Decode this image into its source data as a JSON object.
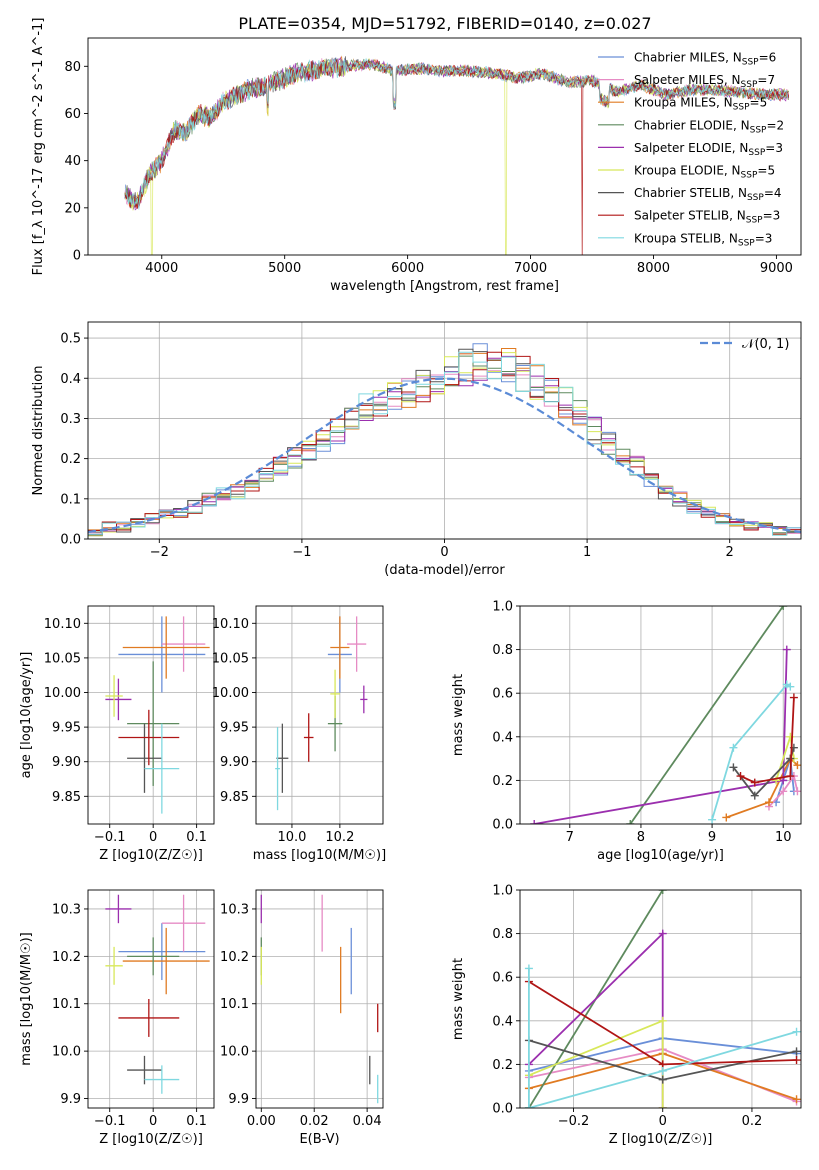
{
  "figure": {
    "title": "PLATE=0354, MJD=51792, FIBERID=0140, z=0.027"
  },
  "models": [
    {
      "name": "Chabrier MILES",
      "nssp": "6",
      "color": "#6a8fd8"
    },
    {
      "name": "Salpeter MILES",
      "nssp": "7",
      "color": "#e68bc4"
    },
    {
      "name": "Kroupa MILES",
      "nssp": "5",
      "color": "#e07b22"
    },
    {
      "name": "Chabrier ELODIE",
      "nssp": "2",
      "color": "#5e8a5e"
    },
    {
      "name": "Salpeter ELODIE",
      "nssp": "3",
      "color": "#9b2fae"
    },
    {
      "name": "Kroupa ELODIE",
      "nssp": "5",
      "color": "#d8e85a"
    },
    {
      "name": "Chabrier STELIB",
      "nssp": "4",
      "color": "#555555"
    },
    {
      "name": "Salpeter STELIB",
      "nssp": "3",
      "color": "#b01515"
    },
    {
      "name": "Kroupa STELIB",
      "nssp": "3",
      "color": "#7fd8e0"
    }
  ],
  "chart_data": [
    {
      "id": "spectrum",
      "type": "line",
      "xlabel": "wavelength [Angstrom, rest frame]",
      "ylabel": "Flux [f_λ 10^-17 erg cm^-2 s^-1 A^-1]",
      "xlim": [
        3400,
        9200
      ],
      "ylim": [
        0,
        92
      ],
      "xticks": [
        4000,
        5000,
        6000,
        7000,
        8000,
        9000
      ],
      "yticks": [
        0,
        20,
        40,
        60,
        80
      ],
      "legend": "top-right",
      "x": [
        3700,
        3800,
        3900,
        4000,
        4100,
        4200,
        4300,
        4400,
        4500,
        4700,
        4900,
        5100,
        5300,
        5500,
        5700,
        5900,
        6100,
        6300,
        6500,
        6700,
        6900,
        7100,
        7300,
        7500,
        7700,
        7900,
        8100,
        8300,
        8500,
        8700,
        8900,
        9100
      ],
      "y": [
        26,
        22,
        34,
        40,
        53,
        52,
        60,
        58,
        65,
        70,
        73,
        77,
        79,
        80,
        81,
        78,
        79,
        78,
        78,
        77,
        75,
        77,
        73,
        74,
        69,
        72,
        68,
        70,
        70,
        69,
        68,
        68
      ],
      "dropouts": [
        {
          "model": "Kroupa ELODIE",
          "x": 3920
        },
        {
          "model": "Kroupa ELODIE",
          "x": 6800
        },
        {
          "model": "Salpeter STELIB",
          "x": 7420
        }
      ]
    },
    {
      "id": "residuals",
      "type": "histogram",
      "xlabel": "(data-model)/error",
      "ylabel": "Normed distribution",
      "xlim": [
        -2.5,
        2.5
      ],
      "ylim": [
        0,
        0.54
      ],
      "xticks": [
        -2,
        -1,
        0,
        1,
        2
      ],
      "yticks": [
        0.0,
        0.1,
        0.2,
        0.3,
        0.4,
        0.5
      ],
      "grid": true,
      "bin_start": -2.5,
      "bin_width": 0.1,
      "reference": {
        "label": "𝒩(0, 1)",
        "mean": 0,
        "sigma": 1,
        "color": "#5b8bd6"
      },
      "values": [
        0.02,
        0.03,
        0.03,
        0.04,
        0.05,
        0.06,
        0.07,
        0.08,
        0.1,
        0.11,
        0.12,
        0.14,
        0.16,
        0.18,
        0.2,
        0.22,
        0.25,
        0.27,
        0.3,
        0.33,
        0.34,
        0.36,
        0.37,
        0.38,
        0.4,
        0.42,
        0.43,
        0.44,
        0.44,
        0.43,
        0.41,
        0.39,
        0.37,
        0.34,
        0.31,
        0.27,
        0.24,
        0.21,
        0.18,
        0.15,
        0.12,
        0.1,
        0.08,
        0.07,
        0.05,
        0.04,
        0.03,
        0.03,
        0.02,
        0.02
      ]
    },
    {
      "id": "age_vs_Z",
      "type": "errorbar",
      "xlabel": "Z [log10(Z/Z☉)]",
      "ylabel": "age [log10(age/yr)]",
      "xlim": [
        -0.15,
        0.14
      ],
      "ylim": [
        9.81,
        10.125
      ],
      "xticks": [
        -0.1,
        0.0,
        0.1
      ],
      "yticks": [
        9.85,
        9.9,
        9.95,
        10.0,
        10.05,
        10.1
      ],
      "grid": true,
      "points": [
        {
          "model": "Chabrier MILES",
          "x": 0.02,
          "xerr": 0.1,
          "y": 10.055,
          "yerr": 0.055
        },
        {
          "model": "Salpeter MILES",
          "x": 0.07,
          "xerr": 0.05,
          "y": 10.07,
          "yerr": 0.04
        },
        {
          "model": "Kroupa MILES",
          "x": 0.03,
          "xerr": 0.1,
          "y": 10.065,
          "yerr": 0.045
        },
        {
          "model": "Chabrier ELODIE",
          "x": 0.0,
          "xerr": 0.06,
          "y": 9.955,
          "yerr": 0.09
        },
        {
          "model": "Salpeter ELODIE",
          "x": -0.08,
          "xerr": 0.03,
          "y": 9.99,
          "yerr": 0.03
        },
        {
          "model": "Kroupa ELODIE",
          "x": -0.09,
          "xerr": 0.02,
          "y": 9.995,
          "yerr": 0.03
        },
        {
          "model": "Chabrier STELIB",
          "x": -0.02,
          "xerr": 0.04,
          "y": 9.905,
          "yerr": 0.05
        },
        {
          "model": "Salpeter STELIB",
          "x": -0.01,
          "xerr": 0.07,
          "y": 9.935,
          "yerr": 0.04
        },
        {
          "model": "Kroupa STELIB",
          "x": 0.02,
          "xerr": 0.04,
          "y": 9.89,
          "yerr": 0.065
        }
      ]
    },
    {
      "id": "age_vs_mass",
      "type": "errorbar",
      "xlabel": "mass [log10(M/M☉)]",
      "ylabel": "",
      "xlim": [
        9.85,
        10.38
      ],
      "ylim": [
        9.81,
        10.125
      ],
      "xticks": [
        10.0,
        10.2
      ],
      "yticks": [
        9.85,
        9.9,
        9.95,
        10.0,
        10.05,
        10.1
      ],
      "grid": true,
      "points": [
        {
          "model": "Chabrier MILES",
          "x": 10.2,
          "xerr": 0.05,
          "y": 10.055,
          "yerr": 0.055
        },
        {
          "model": "Salpeter MILES",
          "x": 10.27,
          "xerr": 0.04,
          "y": 10.07,
          "yerr": 0.04
        },
        {
          "model": "Kroupa MILES",
          "x": 10.2,
          "xerr": 0.04,
          "y": 10.065,
          "yerr": 0.045
        },
        {
          "model": "Chabrier ELODIE",
          "x": 10.18,
          "xerr": 0.03,
          "y": 9.955,
          "yerr": 0.04
        },
        {
          "model": "Salpeter ELODIE",
          "x": 10.3,
          "xerr": 0.015,
          "y": 9.99,
          "yerr": 0.02
        },
        {
          "model": "Kroupa ELODIE",
          "x": 10.18,
          "xerr": 0.02,
          "y": 9.998,
          "yerr": 0.035
        },
        {
          "model": "Chabrier STELIB",
          "x": 9.96,
          "xerr": 0.025,
          "y": 9.905,
          "yerr": 0.05
        },
        {
          "model": "Salpeter STELIB",
          "x": 10.07,
          "xerr": 0.02,
          "y": 9.935,
          "yerr": 0.035
        },
        {
          "model": "Kroupa STELIB",
          "x": 9.94,
          "xerr": 0.01,
          "y": 9.89,
          "yerr": 0.06
        }
      ]
    },
    {
      "id": "weight_vs_age",
      "type": "line",
      "xlabel": "age [log10(age/yr)]",
      "ylabel": "mass weight",
      "xlim": [
        6.3,
        10.25
      ],
      "ylim": [
        0,
        1.0
      ],
      "xticks": [
        7,
        8,
        9,
        10
      ],
      "yticks": [
        0.0,
        0.2,
        0.4,
        0.6,
        0.8,
        1.0
      ],
      "grid": true,
      "series": [
        {
          "model": "Chabrier MILES",
          "x": [
            9.9,
            10.0,
            10.1,
            10.15
          ],
          "y": [
            0.1,
            0.2,
            0.3,
            0.15
          ]
        },
        {
          "model": "Salpeter MILES",
          "x": [
            9.8,
            10.0,
            10.15,
            10.2
          ],
          "y": [
            0.08,
            0.15,
            0.22,
            0.15
          ]
        },
        {
          "model": "Kroupa MILES",
          "x": [
            9.2,
            9.8,
            10.1,
            10.2
          ],
          "y": [
            0.03,
            0.1,
            0.3,
            0.27
          ]
        },
        {
          "model": "Chabrier ELODIE",
          "x": [
            7.85,
            10.0
          ],
          "y": [
            0.0,
            1.0
          ]
        },
        {
          "model": "Salpeter ELODIE",
          "x": [
            6.5,
            10.0,
            10.05
          ],
          "y": [
            0.0,
            0.2,
            0.8
          ]
        },
        {
          "model": "Kroupa ELODIE",
          "x": [
            9.9,
            10.1,
            10.15
          ],
          "y": [
            0.2,
            0.4,
            0.3
          ]
        },
        {
          "model": "Chabrier STELIB",
          "x": [
            9.3,
            9.6,
            10.1,
            10.15
          ],
          "y": [
            0.26,
            0.13,
            0.3,
            0.35
          ]
        },
        {
          "model": "Salpeter STELIB",
          "x": [
            9.4,
            9.6,
            10.1,
            10.15
          ],
          "y": [
            0.22,
            0.19,
            0.22,
            0.58
          ]
        },
        {
          "model": "Kroupa STELIB",
          "x": [
            9.0,
            9.3,
            10.05,
            10.1
          ],
          "y": [
            0.02,
            0.35,
            0.64,
            0.63
          ]
        }
      ]
    },
    {
      "id": "mass_vs_Z",
      "type": "errorbar",
      "xlabel": "Z [log10(Z/Z☉)]",
      "ylabel": "mass [log10(M/M☉)]",
      "xlim": [
        -0.15,
        0.14
      ],
      "ylim": [
        9.88,
        10.34
      ],
      "xticks": [
        -0.1,
        0.0,
        0.1
      ],
      "yticks": [
        9.9,
        10.0,
        10.1,
        10.2,
        10.3
      ],
      "grid": true,
      "points": [
        {
          "model": "Chabrier MILES",
          "x": 0.02,
          "xerr": 0.1,
          "y": 10.21,
          "yerr": 0.06
        },
        {
          "model": "Salpeter MILES",
          "x": 0.07,
          "xerr": 0.05,
          "y": 10.27,
          "yerr": 0.06
        },
        {
          "model": "Kroupa MILES",
          "x": 0.03,
          "xerr": 0.1,
          "y": 10.19,
          "yerr": 0.07
        },
        {
          "model": "Chabrier ELODIE",
          "x": 0.0,
          "xerr": 0.06,
          "y": 10.2,
          "yerr": 0.04
        },
        {
          "model": "Salpeter ELODIE",
          "x": -0.08,
          "xerr": 0.03,
          "y": 10.3,
          "yerr": 0.03
        },
        {
          "model": "Kroupa ELODIE",
          "x": -0.09,
          "xerr": 0.02,
          "y": 10.18,
          "yerr": 0.04
        },
        {
          "model": "Chabrier STELIB",
          "x": -0.02,
          "xerr": 0.04,
          "y": 9.96,
          "yerr": 0.03
        },
        {
          "model": "Salpeter STELIB",
          "x": -0.01,
          "xerr": 0.07,
          "y": 10.07,
          "yerr": 0.04
        },
        {
          "model": "Kroupa STELIB",
          "x": 0.02,
          "xerr": 0.04,
          "y": 9.94,
          "yerr": 0.03
        }
      ]
    },
    {
      "id": "mass_vs_ebv",
      "type": "errorbar",
      "xlabel": "E(B-V)",
      "ylabel": "",
      "xlim": [
        -0.002,
        0.046
      ],
      "ylim": [
        9.88,
        10.34
      ],
      "xticks": [
        0.0,
        0.02,
        0.04
      ],
      "yticks": [
        9.9,
        10.0,
        10.1,
        10.2,
        10.3
      ],
      "grid": true,
      "points": [
        {
          "model": "Chabrier MILES",
          "x": 0.034,
          "xerr": 0.0,
          "y": 10.19,
          "yerr": 0.07
        },
        {
          "model": "Salpeter MILES",
          "x": 0.023,
          "xerr": 0.0,
          "y": 10.27,
          "yerr": 0.06
        },
        {
          "model": "Kroupa MILES",
          "x": 0.03,
          "xerr": 0.0,
          "y": 10.15,
          "yerr": 0.07
        },
        {
          "model": "Chabrier ELODIE",
          "x": 0.0,
          "xerr": 0.0,
          "y": 10.2,
          "yerr": 0.04
        },
        {
          "model": "Salpeter ELODIE",
          "x": 0.0,
          "xerr": 0.0,
          "y": 10.3,
          "yerr": 0.03
        },
        {
          "model": "Kroupa ELODIE",
          "x": 0.0,
          "xerr": 0.0,
          "y": 10.18,
          "yerr": 0.04
        },
        {
          "model": "Chabrier STELIB",
          "x": 0.041,
          "xerr": 0.0,
          "y": 9.96,
          "yerr": 0.03
        },
        {
          "model": "Salpeter STELIB",
          "x": 0.044,
          "xerr": 0.0,
          "y": 10.07,
          "yerr": 0.03
        },
        {
          "model": "Kroupa STELIB",
          "x": 0.044,
          "xerr": 0.0,
          "y": 9.92,
          "yerr": 0.03
        }
      ]
    },
    {
      "id": "weight_vs_Z",
      "type": "line",
      "xlabel": "Z [log10(Z/Z☉)]",
      "ylabel": "mass weight",
      "xlim": [
        -0.32,
        0.31
      ],
      "ylim": [
        0,
        1.0
      ],
      "xticks": [
        -0.2,
        0.0,
        0.2
      ],
      "yticks": [
        0.0,
        0.2,
        0.4,
        0.6,
        0.8,
        1.0
      ],
      "grid": true,
      "series": [
        {
          "model": "Chabrier MILES",
          "x": [
            -0.3,
            0.0,
            0.3
          ],
          "y": [
            0.17,
            0.32,
            0.25
          ]
        },
        {
          "model": "Salpeter MILES",
          "x": [
            -0.3,
            0.0,
            0.3
          ],
          "y": [
            0.14,
            0.27,
            0.03
          ]
        },
        {
          "model": "Kroupa MILES",
          "x": [
            -0.3,
            0.0,
            0.3
          ],
          "y": [
            0.09,
            0.25,
            0.04
          ]
        },
        {
          "model": "Chabrier ELODIE",
          "x": [
            -0.3,
            0.0
          ],
          "y": [
            0.0,
            1.0
          ]
        },
        {
          "model": "Salpeter ELODIE",
          "x": [
            -0.3,
            0.0,
            0.0
          ],
          "y": [
            0.2,
            0.8,
            0.0
          ]
        },
        {
          "model": "Kroupa ELODIE",
          "x": [
            -0.3,
            0.0,
            0.0
          ],
          "y": [
            0.15,
            0.4,
            0.0
          ]
        },
        {
          "model": "Chabrier STELIB",
          "x": [
            -0.3,
            0.0,
            0.3
          ],
          "y": [
            0.31,
            0.13,
            0.26
          ]
        },
        {
          "model": "Salpeter STELIB",
          "x": [
            -0.3,
            0.0,
            0.3
          ],
          "y": [
            0.58,
            0.2,
            0.22
          ]
        },
        {
          "model": "Kroupa STELIB",
          "x": [
            -0.3,
            -0.3,
            0.0,
            0.3
          ],
          "y": [
            0.64,
            0.0,
            0.17,
            0.35
          ]
        }
      ]
    }
  ]
}
